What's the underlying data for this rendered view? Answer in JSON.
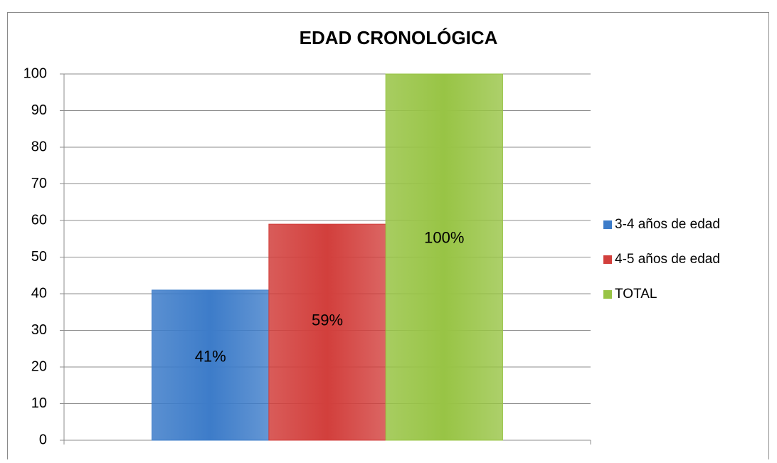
{
  "chart_data": {
    "type": "bar",
    "title": "EDAD CRONOLÓGICA",
    "categories": [
      null
    ],
    "series": [
      {
        "name": "3-4 años de edad",
        "color": "#3d7cc9",
        "values": [
          41
        ],
        "value_labels": [
          "41%"
        ]
      },
      {
        "name": "4-5 años de edad",
        "color": "#d23f3c",
        "values": [
          59
        ],
        "value_labels": [
          "59%"
        ]
      },
      {
        "name": "TOTAL",
        "color": "#98c445",
        "values": [
          100
        ],
        "value_labels": [
          "100%"
        ]
      }
    ],
    "ylim": [
      0,
      100
    ],
    "yticks": [
      0,
      10,
      20,
      30,
      40,
      50,
      60,
      70,
      80,
      90,
      100
    ],
    "grid": true,
    "legend": "right"
  }
}
